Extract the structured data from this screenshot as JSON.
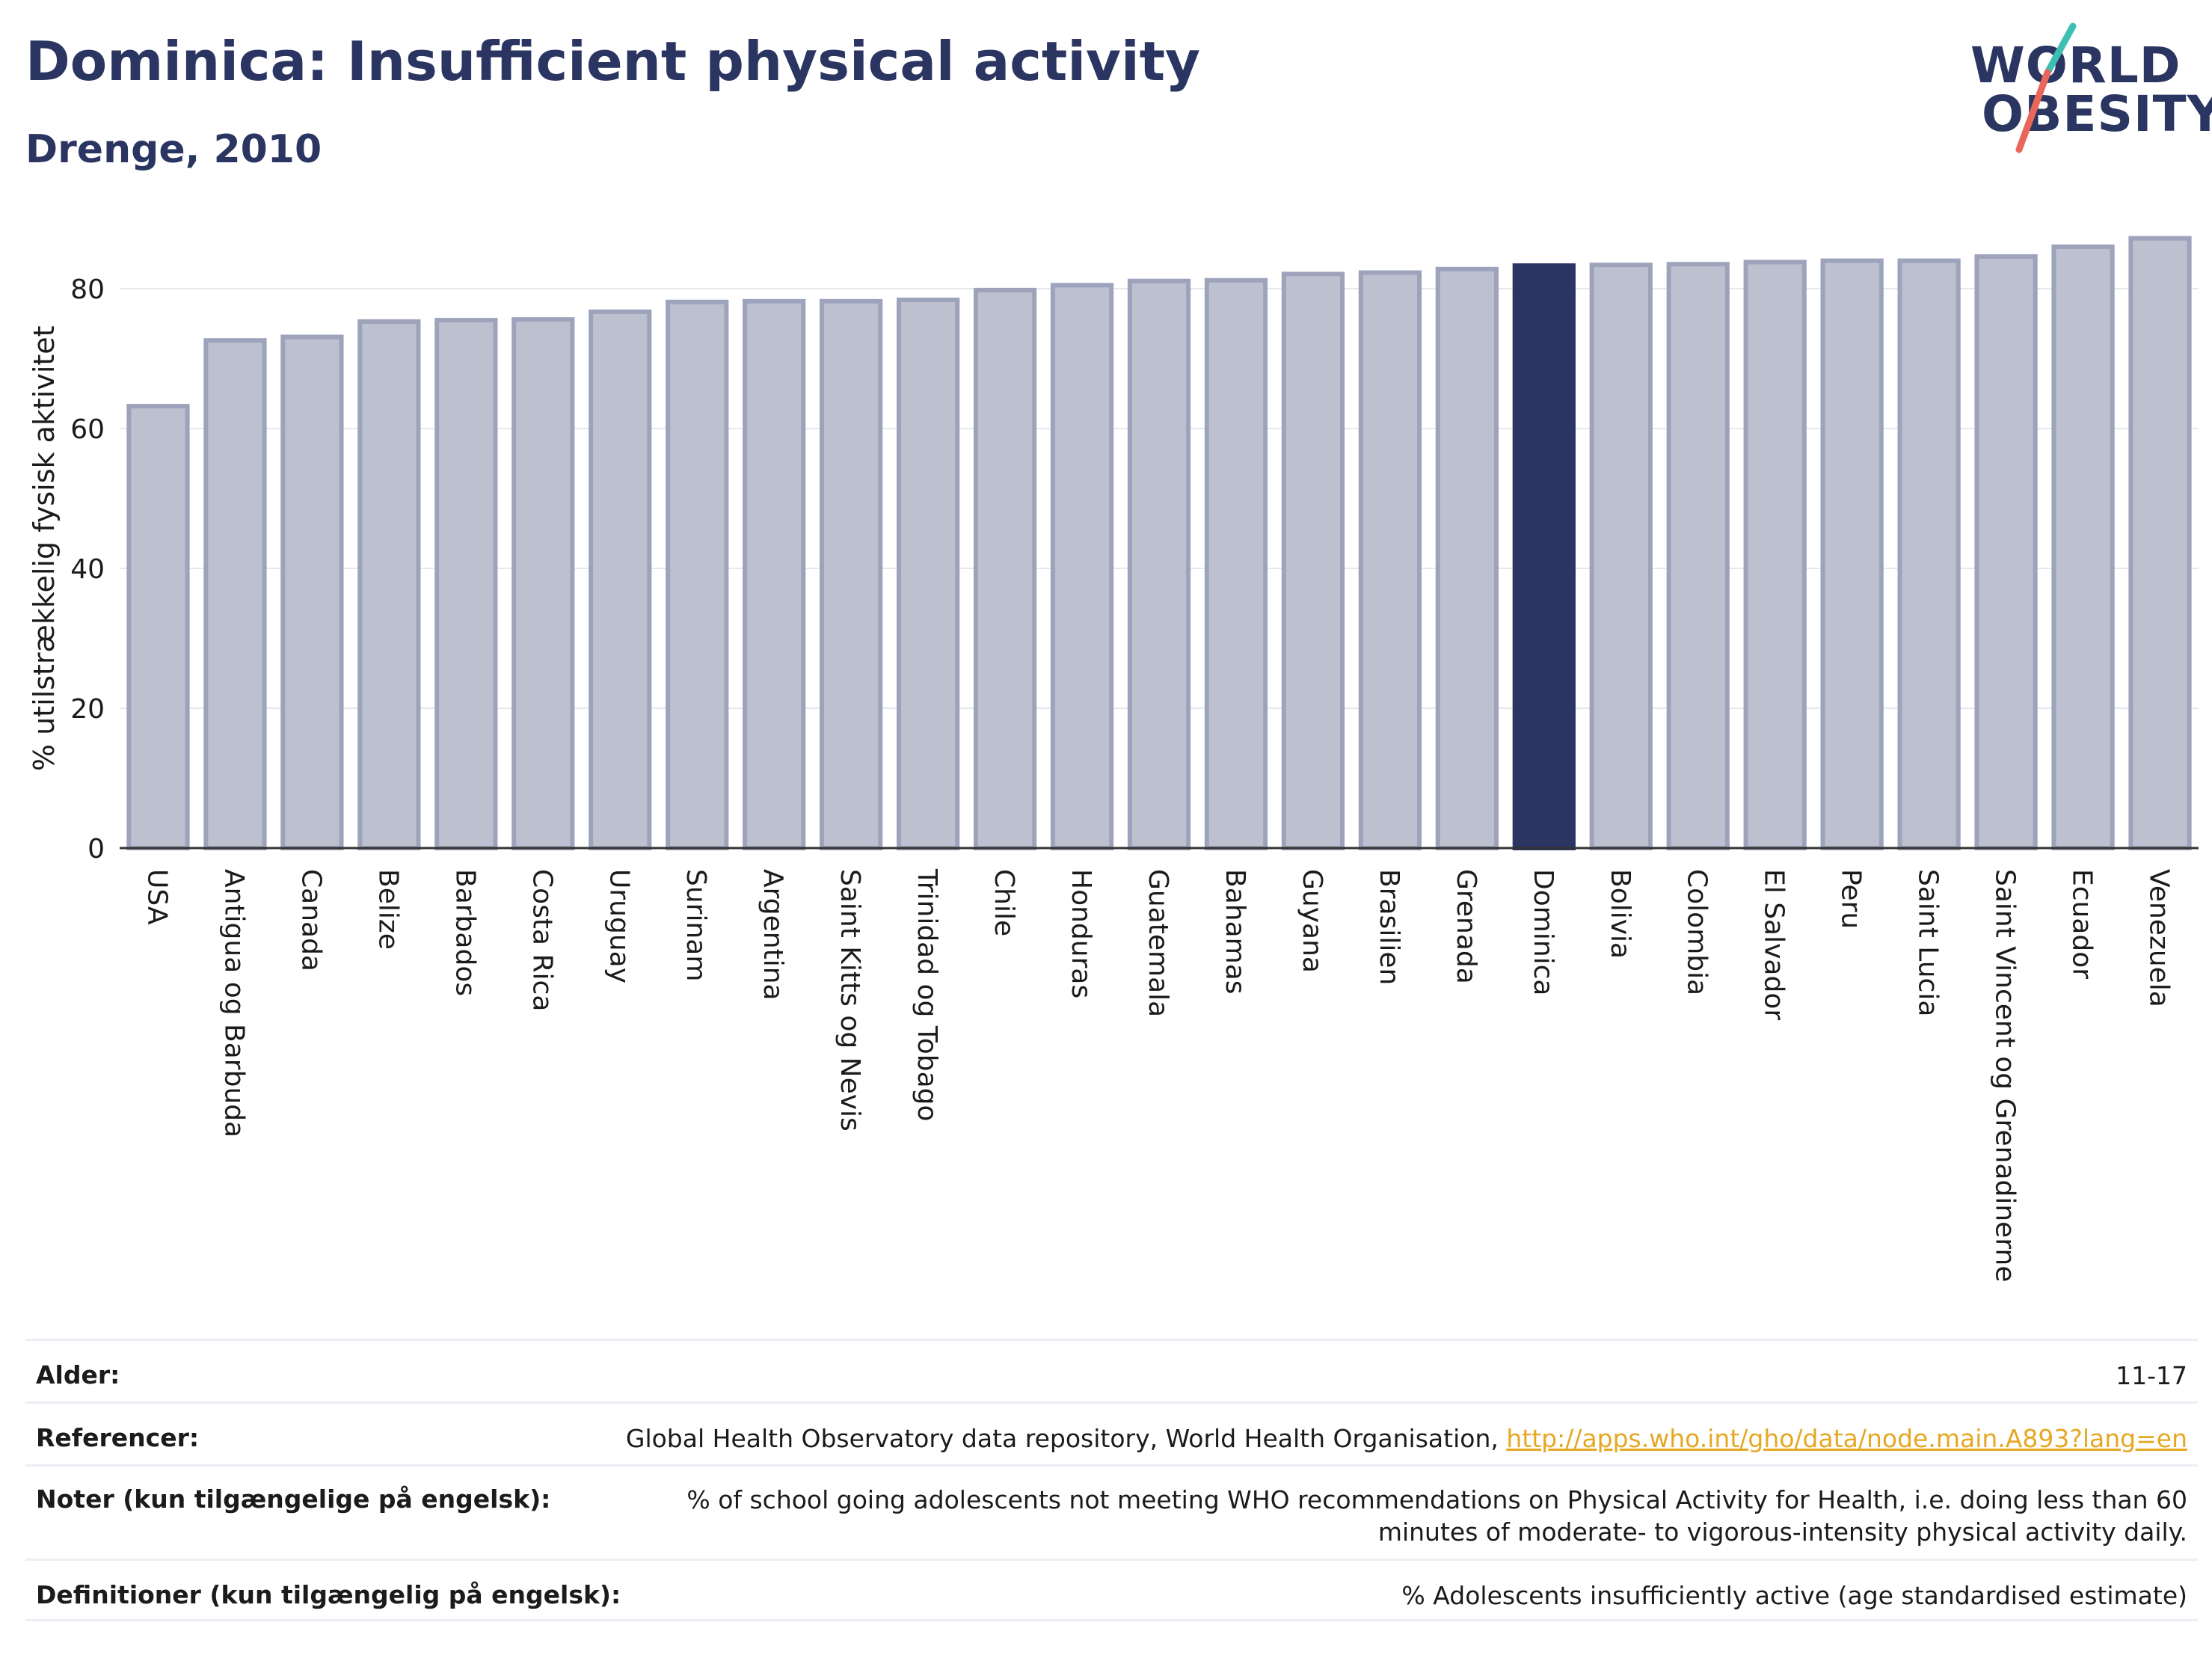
{
  "header": {
    "title": "Dominica: Insufficient physical activity",
    "subtitle": "Drenge, 2010"
  },
  "logo": {
    "line1": "WORLD",
    "line2": "OBESITY",
    "slash_colors": [
      "#3dbfb4",
      "#e8675a"
    ]
  },
  "colors": {
    "bar": "#bcc0cf",
    "bar_border": "#9da3bb",
    "highlight": "#2b3561",
    "grid": "#e6e8ee",
    "axis": "#333333",
    "text": "#1b1b1b",
    "title": "#2b3561"
  },
  "chart_data": {
    "type": "bar",
    "ylabel": "% utilstrækkelig fysisk aktivitet",
    "xlabel": "",
    "ylim": [
      0,
      90
    ],
    "yticks": [
      0,
      20,
      40,
      60,
      80
    ],
    "grid": true,
    "highlight": "Dominica",
    "categories": [
      "USA",
      "Antigua og Barbuda",
      "Canada",
      "Belize",
      "Barbados",
      "Costa Rica",
      "Uruguay",
      "Surinam",
      "Argentina",
      "Saint Kitts og Nevis",
      "Trinidad og Tobago",
      "Chile",
      "Honduras",
      "Guatemala",
      "Bahamas",
      "Guyana",
      "Brasilien",
      "Grenada",
      "Dominica",
      "Bolivia",
      "Colombia",
      "El Salvador",
      "Peru",
      "Saint Lucia",
      "Saint Vincent og Grenadinerne",
      "Ecuador",
      "Venezuela"
    ],
    "values": [
      63.2,
      72.6,
      73.1,
      75.3,
      75.5,
      75.6,
      76.7,
      78.1,
      78.2,
      78.2,
      78.4,
      79.8,
      80.5,
      81.1,
      81.2,
      82.1,
      82.3,
      82.8,
      83.3,
      83.4,
      83.5,
      83.8,
      84.0,
      84.0,
      84.6,
      86.0,
      87.2
    ]
  },
  "footer": {
    "rows": [
      {
        "label": "Alder:",
        "value": "11-17"
      },
      {
        "label": "Referencer:",
        "value": "Global Health Observatory data repository, World Health Organisation, ",
        "link": "http://apps.who.int/gho/data/node.main.A893?lang=en"
      },
      {
        "label": "Noter (kun tilgængelige på engelsk):",
        "value": "% of school going adolescents not meeting WHO recommendations on Physical Activity for Health, i.e. doing less than 60 minutes of moderate- to vigorous-intensity physical activity daily."
      },
      {
        "label": "Definitioner (kun tilgængelig på engelsk):",
        "value": "% Adolescents insufficiently active (age standardised estimate)"
      }
    ]
  }
}
